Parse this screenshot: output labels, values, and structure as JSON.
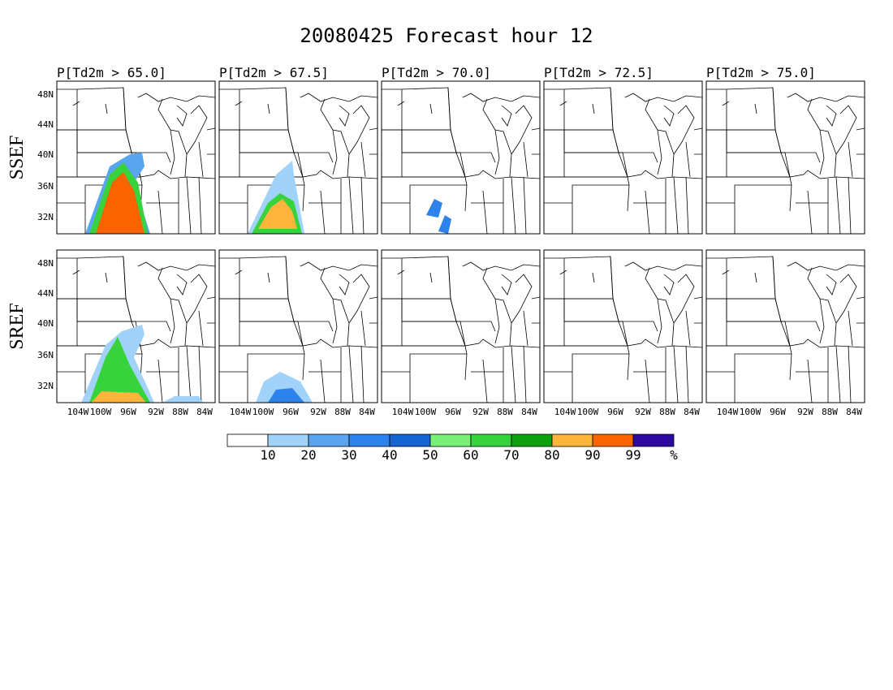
{
  "title": "20080425 Forecast hour 12",
  "columns": [
    "P[Td2m > 65.0]",
    "P[Td2m > 67.5]",
    "P[Td2m > 70.0]",
    "P[Td2m > 72.5]",
    "P[Td2m > 75.0]"
  ],
  "rows": [
    "SSEF",
    "SREF"
  ],
  "lat_labels": [
    "48N",
    "44N",
    "40N",
    "36N",
    "32N"
  ],
  "lon_labels": [
    "104W",
    "100W",
    "96W",
    "92W",
    "88W",
    "84W"
  ],
  "colorbar": {
    "labels": [
      "10",
      "20",
      "30",
      "40",
      "50",
      "60",
      "70",
      "80",
      "90",
      "99",
      "%"
    ],
    "colors": [
      "#ffffff",
      "#a0d2fa",
      "#5aa5f0",
      "#2d82eb",
      "#1464d2",
      "#78f078",
      "#37d23c",
      "#0fa00f",
      "#ffb43c",
      "#fa6400",
      "#2d0aa0"
    ]
  }
}
